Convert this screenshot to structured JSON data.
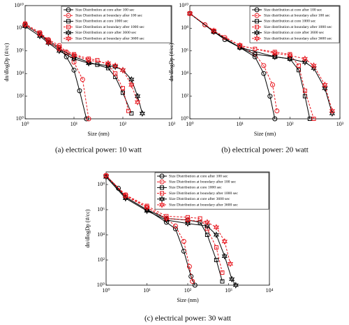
{
  "chart_data": [
    {
      "type": "line",
      "caption": "(a) electrical power: 10 watt",
      "xlabel": "Size (nm)",
      "ylabel": "dn/dlogDp (#/cc)",
      "log_x": true,
      "log_y": true,
      "xlim": [
        1,
        1000
      ],
      "xticks": [
        {
          "value": 1,
          "label": "10⁰"
        },
        {
          "value": 10,
          "label": "10¹"
        },
        {
          "value": 100,
          "label": "10²"
        },
        {
          "value": 1000,
          "label": "10³"
        }
      ],
      "ylim": [
        1,
        10000000000
      ],
      "yticks": [
        {
          "value": 1,
          "label": "10⁰"
        },
        {
          "value": 100,
          "label": "10²"
        },
        {
          "value": 10000,
          "label": "10⁴"
        },
        {
          "value": 1000000,
          "label": "10⁶"
        },
        {
          "value": 100000000,
          "label": "10⁸"
        },
        {
          "value": 10000000000,
          "label": "10¹⁰"
        }
      ],
      "series": [
        {
          "name": "Size Distribution at core after 100 sec",
          "color": "#000000",
          "marker": "o",
          "linestyle": "-",
          "x": [
            1,
            2,
            3,
            5,
            7,
            10,
            13,
            18
          ],
          "values": [
            200000000,
            30000000,
            8000000,
            2000000,
            300000,
            20000,
            300,
            1
          ]
        },
        {
          "name": "Size Distribution at boundary after 100 sec",
          "color": "#e8141c",
          "marker": "o",
          "linestyle": "--",
          "x": [
            1,
            2,
            3,
            5,
            7,
            10,
            15,
            20
          ],
          "values": [
            250000000,
            40000000,
            10000000,
            3000000,
            800000,
            100000,
            3000,
            1
          ]
        },
        {
          "name": "Size Distribution at core 1000 sec",
          "color": "#000000",
          "marker": "s",
          "linestyle": "-",
          "x": [
            1,
            2,
            3,
            5,
            10,
            20,
            30,
            50,
            70,
            100,
            150
          ],
          "values": [
            200000000,
            30000000,
            6000000,
            1500000,
            300000,
            100000,
            60000,
            30000,
            5000,
            200,
            3
          ]
        },
        {
          "name": "Size Distribution at boundary after 1000 sec",
          "color": "#e8141c",
          "marker": "s",
          "linestyle": "--",
          "x": [
            1,
            2,
            3,
            5,
            10,
            20,
            30,
            50,
            70,
            100,
            130
          ],
          "values": [
            250000000,
            40000000,
            8000000,
            2000000,
            500000,
            200000,
            150000,
            60000,
            10000,
            500,
            5
          ]
        },
        {
          "name": "Size Distribution at core after 3600 sec",
          "color": "#000000",
          "marker": "*",
          "linestyle": "-",
          "x": [
            1,
            2,
            3,
            5,
            10,
            20,
            50,
            70,
            100,
            150,
            200,
            250
          ],
          "values": [
            150000000,
            20000000,
            5000000,
            1000000,
            200000,
            80000,
            50000,
            40000,
            20000,
            3000,
            100,
            3
          ]
        },
        {
          "name": "Size Distribution at boundary after 3600 sec",
          "color": "#e8141c",
          "marker": "*",
          "linestyle": "--",
          "x": [
            1,
            2,
            3,
            5,
            10,
            20,
            50,
            70,
            100,
            150,
            200
          ],
          "values": [
            200000000,
            30000000,
            6000000,
            1500000,
            400000,
            150000,
            80000,
            50000,
            20000,
            1000,
            30
          ]
        }
      ]
    },
    {
      "type": "line",
      "caption": "(b) electrical power: 20 watt",
      "xlabel": "Size (nm)",
      "ylabel": "dn/dlogDp (#/cc)",
      "log_x": true,
      "log_y": true,
      "xlim": [
        1,
        1000
      ],
      "xticks": [
        {
          "value": 1,
          "label": "10⁰"
        },
        {
          "value": 10,
          "label": "10¹"
        },
        {
          "value": 100,
          "label": "10²"
        },
        {
          "value": 1000,
          "label": "10³"
        }
      ],
      "ylim": [
        1,
        10000000000
      ],
      "yticks": [
        {
          "value": 1,
          "label": "10⁰"
        },
        {
          "value": 100,
          "label": "10²"
        },
        {
          "value": 10000,
          "label": "10⁴"
        },
        {
          "value": 1000000,
          "label": "10⁶"
        },
        {
          "value": 100000000,
          "label": "10⁸"
        },
        {
          "value": 10000000000,
          "label": "10¹⁰"
        }
      ],
      "series": [
        {
          "name": "Size distribution at core after 100 sec",
          "color": "#000000",
          "marker": "o",
          "linestyle": "-",
          "x": [
            1,
            2,
            3,
            5,
            10,
            20,
            30,
            40,
            50
          ],
          "values": [
            2000000000,
            200000000,
            50000000,
            10000000,
            2000000,
            300000,
            10000,
            100,
            1
          ]
        },
        {
          "name": "Size distribution at boundary after 100 sec",
          "color": "#e8141c",
          "marker": "o",
          "linestyle": "--",
          "x": [
            1,
            2,
            3,
            5,
            10,
            20,
            30,
            45,
            55
          ],
          "values": [
            2000000000,
            200000000,
            50000000,
            15000000,
            3000000,
            500000,
            50000,
            1000,
            5
          ]
        },
        {
          "name": "Size distribution at core 1000 sec",
          "color": "#000000",
          "marker": "s",
          "linestyle": "-",
          "x": [
            1,
            3,
            10,
            20,
            50,
            100,
            150,
            200,
            250
          ],
          "values": [
            2000000000,
            50000000,
            2000000,
            500000,
            300000,
            200000,
            20000,
            100,
            1
          ]
        },
        {
          "name": "Size distribution at boundary after 1000 sec",
          "color": "#e8141c",
          "marker": "s",
          "linestyle": "--",
          "x": [
            1,
            3,
            10,
            20,
            50,
            100,
            150,
            200,
            300
          ],
          "values": [
            2000000000,
            60000000,
            3000000,
            1500000,
            800000,
            500000,
            50000,
            300,
            1
          ]
        },
        {
          "name": "Size distribution at core after 3600 sec",
          "color": "#000000",
          "marker": "*",
          "linestyle": "-",
          "x": [
            1,
            3,
            10,
            50,
            100,
            200,
            300,
            500,
            700
          ],
          "values": [
            2000000000,
            50000000,
            2000000,
            300000,
            200000,
            100000,
            30000,
            500,
            3
          ]
        },
        {
          "name": "Size distribution at boundary after 3600 sec",
          "color": "#e8141c",
          "marker": "*",
          "linestyle": "--",
          "x": [
            1,
            3,
            10,
            50,
            100,
            200,
            300,
            500,
            700
          ],
          "values": [
            2000000000,
            60000000,
            3000000,
            600000,
            400000,
            200000,
            50000,
            1000,
            5
          ]
        }
      ]
    },
    {
      "type": "line",
      "caption": "(c) electrical power: 30 watt",
      "xlabel": "Size (nm)",
      "ylabel": "dn/dlogDp (#/cc)",
      "log_x": true,
      "log_y": true,
      "xlim": [
        1,
        10000
      ],
      "xticks": [
        {
          "value": 1,
          "label": "10⁰"
        },
        {
          "value": 10,
          "label": "10¹"
        },
        {
          "value": 100,
          "label": "10²"
        },
        {
          "value": 1000,
          "label": "10³"
        },
        {
          "value": 10000,
          "label": "10⁴"
        }
      ],
      "ylim": [
        1,
        1000000000
      ],
      "yticks": [
        {
          "value": 1,
          "label": "10⁰"
        },
        {
          "value": 100,
          "label": "10²"
        },
        {
          "value": 10000,
          "label": "10⁴"
        },
        {
          "value": 1000000,
          "label": "10⁶"
        },
        {
          "value": 100000000,
          "label": "10⁸"
        }
      ],
      "series": [
        {
          "name": "Size Distribution at core after 100 sec",
          "color": "#000000",
          "marker": "o",
          "linestyle": "-",
          "x": [
            1,
            2,
            3,
            10,
            30,
            50,
            80,
            120,
            150
          ],
          "values": [
            500000000,
            50000000,
            10000000,
            1000000,
            100000,
            30000,
            500,
            5,
            1
          ]
        },
        {
          "name": "Size Distribution at boundary after 100 sec",
          "color": "#e8141c",
          "marker": "o",
          "linestyle": "--",
          "x": [
            1,
            3,
            10,
            30,
            50,
            80,
            110,
            130
          ],
          "values": [
            500000000,
            15000000,
            1500000,
            200000,
            50000,
            3000,
            30,
            2
          ]
        },
        {
          "name": "Size Distribution at core 1000 sec",
          "color": "#000000",
          "marker": "s",
          "linestyle": "-",
          "x": [
            1,
            3,
            10,
            30,
            100,
            200,
            300,
            500,
            700
          ],
          "values": [
            500000000,
            10000000,
            1000000,
            200000,
            150000,
            100000,
            10000,
            100,
            2
          ]
        },
        {
          "name": "Size Distribution at boundary after 1000 sec",
          "color": "#e8141c",
          "marker": "s",
          "linestyle": "--",
          "x": [
            1,
            3,
            10,
            30,
            100,
            200,
            300,
            500,
            700
          ],
          "values": [
            500000000,
            15000000,
            2000000,
            300000,
            250000,
            200000,
            30000,
            1000,
            10
          ]
        },
        {
          "name": "Size Distribution at core after 3600 sec",
          "color": "#000000",
          "marker": "*",
          "linestyle": "-",
          "x": [
            1,
            3,
            10,
            30,
            100,
            300,
            500,
            800,
            1200,
            1500
          ],
          "values": [
            400000000,
            8000000,
            800000,
            150000,
            80000,
            50000,
            10000,
            200,
            3,
            1
          ]
        },
        {
          "name": "Size Distribution at boundary after 3600 sec",
          "color": "#e8141c",
          "marker": "*",
          "linestyle": "--",
          "x": [
            1,
            3,
            10,
            30,
            100,
            300,
            500,
            800,
            1100
          ],
          "values": [
            500000000,
            12000000,
            1500000,
            200000,
            150000,
            100000,
            40000,
            3000,
            50
          ]
        }
      ]
    }
  ]
}
